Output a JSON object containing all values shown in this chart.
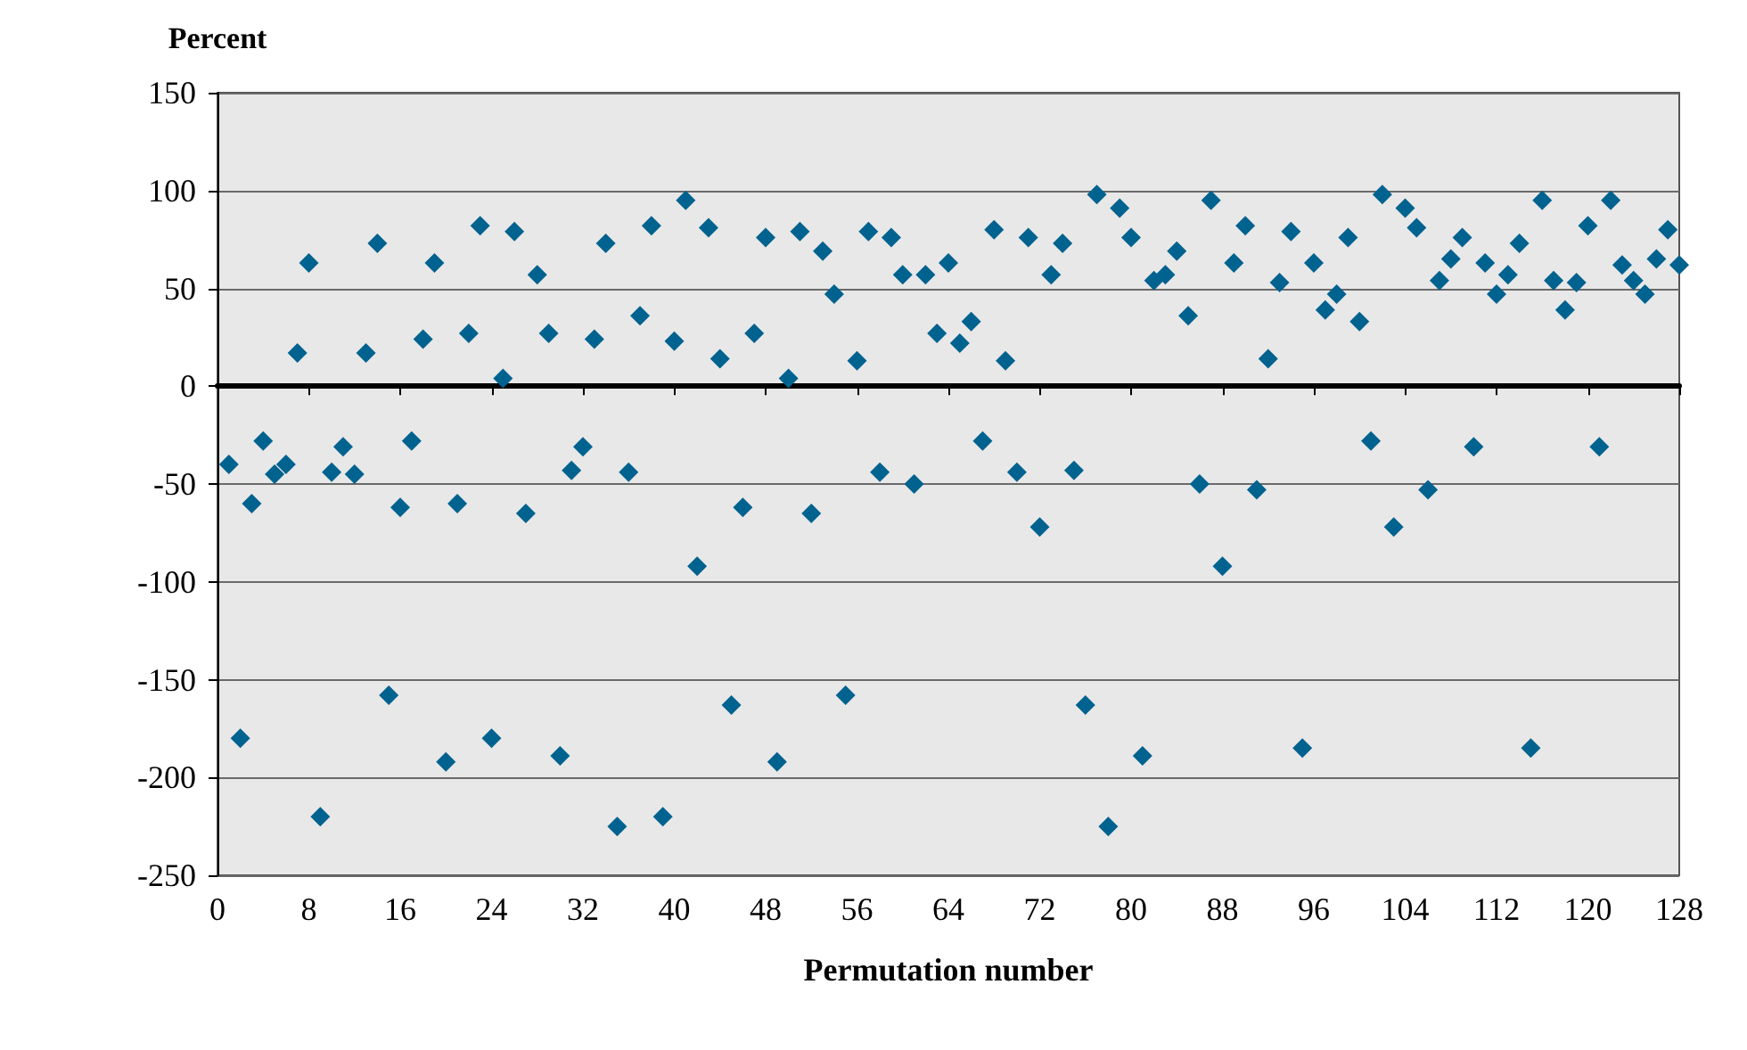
{
  "chart_data": {
    "type": "scatter",
    "xlabel": "Permutation number",
    "ylabel": "Percent",
    "x": [
      1,
      2,
      3,
      4,
      5,
      6,
      7,
      8,
      9,
      10,
      11,
      12,
      13,
      14,
      15,
      16,
      17,
      18,
      19,
      20,
      21,
      22,
      23,
      24,
      25,
      26,
      27,
      28,
      29,
      30,
      31,
      32,
      33,
      34,
      35,
      36,
      37,
      38,
      39,
      40,
      41,
      42,
      43,
      44,
      45,
      46,
      47,
      48,
      49,
      50,
      51,
      52,
      53,
      54,
      55,
      56,
      57,
      58,
      59,
      60,
      61,
      62,
      63,
      64,
      65,
      66,
      67,
      68,
      69,
      70,
      71,
      72,
      73,
      74,
      75,
      76,
      77,
      78,
      79,
      80,
      81,
      82,
      83,
      84,
      85,
      86,
      87,
      88,
      89,
      90,
      91,
      92,
      93,
      94,
      95,
      96,
      97,
      98,
      99,
      100,
      101,
      102,
      103,
      104,
      105,
      106,
      107,
      108,
      109,
      110,
      111,
      112,
      113,
      114,
      115,
      116,
      117,
      118,
      119,
      120,
      121,
      122,
      123,
      124,
      125,
      126,
      127,
      128
    ],
    "series": [
      {
        "color": "#00628f",
        "values": [
          -40,
          -180,
          -60,
          -28,
          -45,
          -40,
          17,
          63,
          -220,
          -44,
          -31,
          -45,
          17,
          73,
          -158,
          -62,
          -28,
          24,
          63,
          -192,
          -60,
          27,
          82,
          -180,
          4,
          79,
          -65,
          57,
          27,
          -189,
          -43,
          -31,
          24,
          73,
          -225,
          -44,
          36,
          82,
          -220,
          23,
          95,
          -92,
          81,
          14,
          -163,
          -62,
          27,
          76,
          -192,
          4,
          79,
          -65,
          69,
          47,
          -158,
          13,
          79,
          -44,
          76,
          57,
          -50,
          57,
          27,
          63,
          22,
          33,
          -28,
          80,
          13,
          -44,
          76,
          -72,
          57,
          73,
          -43,
          -163,
          98,
          -225,
          91,
          76,
          -189,
          54,
          57,
          69,
          36,
          -50,
          95,
          -92,
          63,
          82,
          -53,
          14,
          53,
          79,
          -185,
          63,
          39,
          47,
          76,
          33,
          -28,
          98,
          -72,
          91,
          81,
          -53,
          54,
          65,
          76,
          -31,
          63,
          47,
          57,
          73,
          -185,
          95,
          54,
          39,
          53,
          82,
          -31,
          95,
          62,
          54,
          47,
          65,
          80,
          62
        ]
      }
    ],
    "xlim": [
      0,
      128
    ],
    "xticks": [
      0,
      8,
      16,
      24,
      32,
      40,
      48,
      56,
      64,
      72,
      80,
      88,
      96,
      104,
      112,
      120,
      128
    ],
    "ylim": [
      -250,
      150
    ],
    "yticks": [
      -250,
      -200,
      -150,
      -100,
      -50,
      0,
      50,
      100,
      150
    ],
    "grid": "y",
    "marker": "diamond"
  }
}
